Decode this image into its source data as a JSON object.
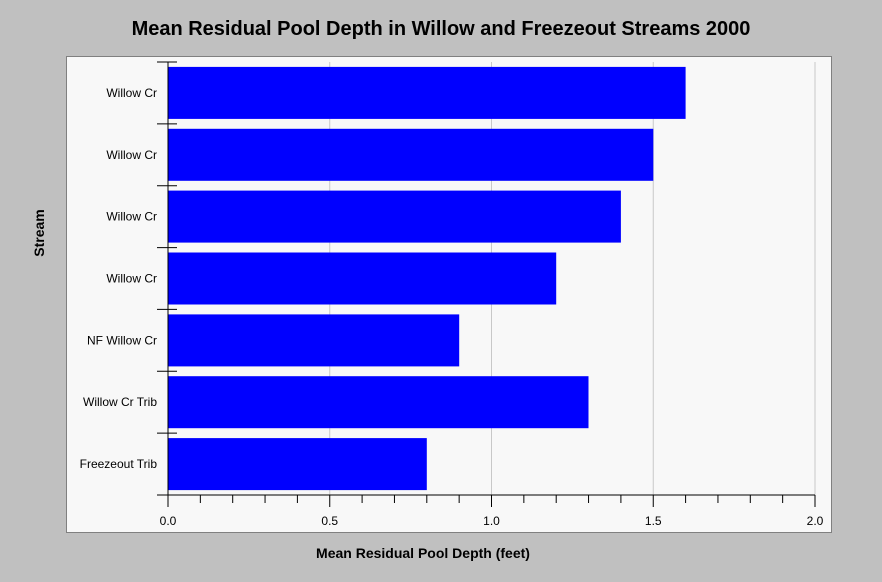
{
  "chart_data": {
    "type": "bar",
    "orientation": "horizontal",
    "title": "Mean Residual Pool Depth in Willow and Freezeout Streams 2000",
    "xlabel": "Mean Residual Pool Depth (feet)",
    "ylabel": "Stream",
    "categories": [
      "Willow Cr",
      "Willow Cr",
      "Willow Cr",
      "Willow Cr",
      "NF Willow Cr",
      "Willow Cr Trib",
      "Freezeout Trib"
    ],
    "values": [
      1.6,
      1.5,
      1.4,
      1.2,
      0.9,
      1.3,
      0.8
    ],
    "xlim": [
      0,
      2.0
    ],
    "xticks": [
      "0.0",
      "0.5",
      "1.0",
      "1.5",
      "2.0"
    ],
    "grid": true,
    "legend": "none",
    "colors": {
      "bar": "#0000ff",
      "background": "#c0c0c0",
      "plot_background": "#f8f8f8",
      "grid": "#c8c8c8"
    }
  }
}
